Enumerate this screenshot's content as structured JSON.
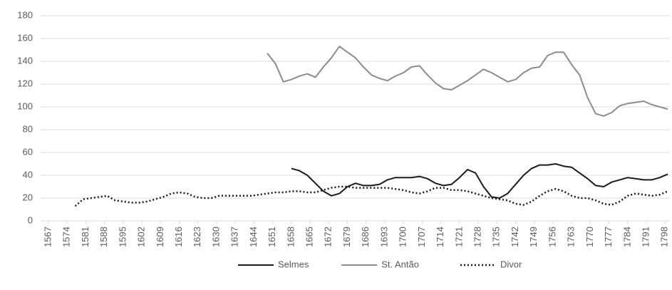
{
  "chart_data": {
    "type": "line",
    "x": [
      1577,
      1580,
      1583,
      1586,
      1589,
      1592,
      1595,
      1598,
      1601,
      1604,
      1607,
      1610,
      1613,
      1616,
      1619,
      1622,
      1625,
      1628,
      1631,
      1634,
      1637,
      1640,
      1643,
      1646,
      1649,
      1652,
      1655,
      1658,
      1661,
      1664,
      1667,
      1670,
      1673,
      1676,
      1679,
      1682,
      1685,
      1688,
      1691,
      1694,
      1697,
      1700,
      1703,
      1706,
      1709,
      1712,
      1715,
      1718,
      1721,
      1724,
      1727,
      1730,
      1733,
      1736,
      1739,
      1742,
      1745,
      1748,
      1751,
      1754,
      1757,
      1760,
      1763,
      1766,
      1769,
      1772,
      1775,
      1778,
      1781,
      1784,
      1787,
      1790,
      1793,
      1796,
      1799
    ],
    "series": [
      {
        "name": "Selmes",
        "color": "#1a1a1a",
        "style": "solid",
        "values": [
          null,
          null,
          null,
          null,
          null,
          null,
          null,
          null,
          null,
          null,
          null,
          null,
          null,
          null,
          null,
          null,
          null,
          null,
          null,
          null,
          null,
          null,
          null,
          null,
          null,
          null,
          null,
          46,
          44,
          40,
          33,
          26,
          22,
          24,
          30,
          33,
          31,
          31,
          32,
          36,
          38,
          38,
          38,
          39,
          37,
          33,
          31,
          32,
          38,
          45,
          42,
          30,
          21,
          20,
          24,
          32,
          40,
          46,
          49,
          49,
          50,
          48,
          47,
          42,
          37,
          31,
          30,
          34,
          36,
          38,
          37,
          36,
          36,
          38,
          41
        ]
      },
      {
        "name": "St. Antão",
        "color": "#8c8c8c",
        "style": "solid",
        "values": [
          null,
          null,
          null,
          null,
          null,
          null,
          null,
          null,
          null,
          null,
          null,
          null,
          null,
          null,
          null,
          null,
          null,
          null,
          null,
          null,
          null,
          null,
          null,
          null,
          147,
          138,
          122,
          124,
          127,
          129,
          126,
          135,
          143,
          153,
          148,
          143,
          135,
          128,
          125,
          123,
          127,
          130,
          135,
          136,
          128,
          121,
          116,
          115,
          119,
          123,
          128,
          133,
          130,
          126,
          122,
          124,
          130,
          134,
          135,
          145,
          148,
          148,
          137,
          128,
          108,
          94,
          92,
          95,
          101,
          103,
          104,
          105,
          102,
          100,
          98
        ]
      },
      {
        "name": "Divor",
        "color": "#1a1a1a",
        "style": "dotted",
        "values": [
          13,
          19,
          20,
          21,
          22,
          18,
          17,
          16,
          16,
          17,
          19,
          21,
          24,
          25,
          24,
          21,
          20,
          20,
          22,
          22,
          22,
          22,
          22,
          23,
          24,
          25,
          25,
          26,
          26,
          25,
          25,
          27,
          29,
          30,
          30,
          29,
          29,
          29,
          29,
          29,
          28,
          27,
          25,
          24,
          26,
          29,
          29,
          27,
          27,
          26,
          24,
          22,
          20,
          19,
          18,
          15,
          14,
          17,
          22,
          26,
          28,
          26,
          22,
          20,
          20,
          18,
          15,
          14,
          17,
          22,
          24,
          23,
          22,
          23,
          26
        ]
      }
    ],
    "xlim": [
      1567,
      1799
    ],
    "xticks": [
      1567,
      1574,
      1581,
      1588,
      1595,
      1602,
      1609,
      1616,
      1623,
      1630,
      1637,
      1644,
      1651,
      1658,
      1665,
      1672,
      1679,
      1686,
      1693,
      1700,
      1707,
      1714,
      1721,
      1728,
      1735,
      1742,
      1749,
      1756,
      1763,
      1770,
      1777,
      1784,
      1791,
      1798
    ],
    "ylim": [
      0,
      180
    ],
    "yticks": [
      0,
      20,
      40,
      60,
      80,
      100,
      120,
      140,
      160,
      180
    ],
    "grid": true,
    "legend": "bottom"
  }
}
